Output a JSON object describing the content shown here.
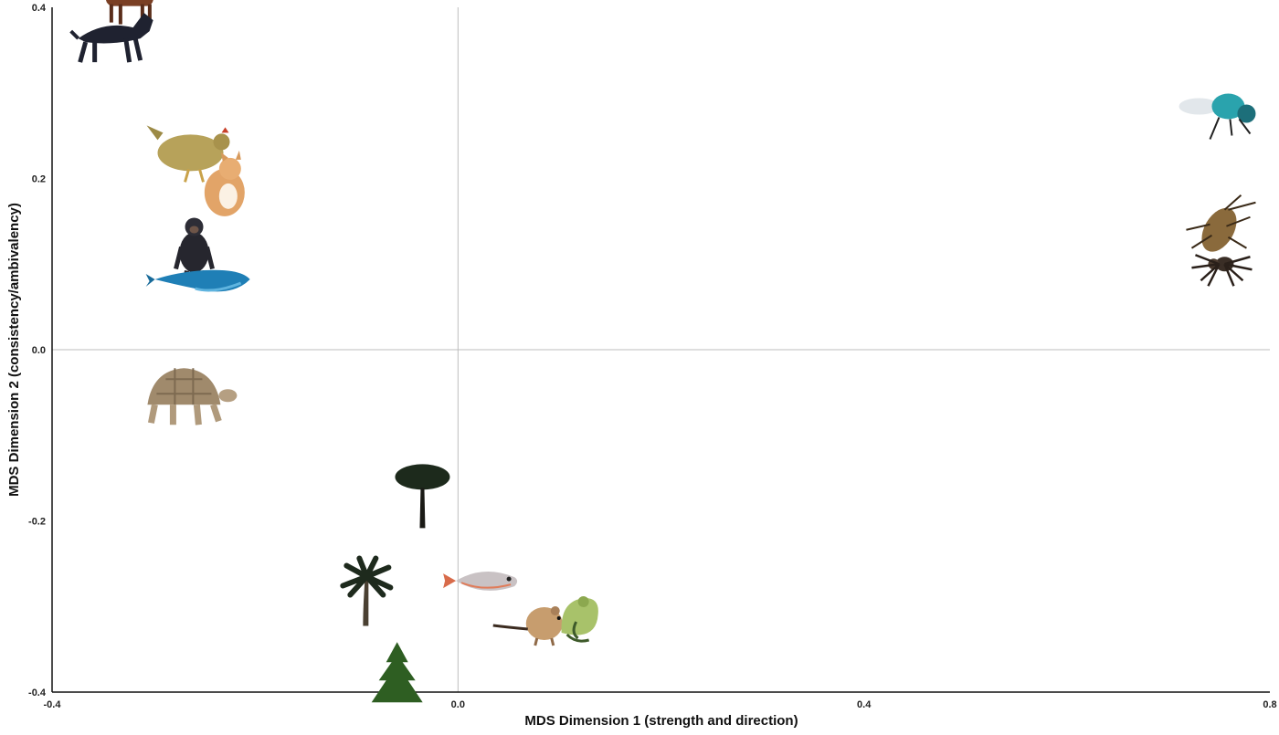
{
  "chart_data": {
    "type": "scatter",
    "title": "",
    "xlabel": "MDS Dimension 1 (strength and direction)",
    "ylabel": "MDS Dimension 2 (consistency/ambivalency)",
    "xlim": [
      -0.4,
      0.8
    ],
    "ylim": [
      -0.4,
      0.4
    ],
    "x_ticks": [
      -0.4,
      0.0,
      0.4,
      0.8
    ],
    "y_ticks": [
      0.4,
      0.2,
      0.0,
      -0.2,
      -0.4
    ],
    "x_tick_labels": [
      "-0.4",
      "0.0",
      "0.4",
      "0.8"
    ],
    "y_tick_labels": [
      "0.4",
      "0.2",
      "0.0",
      "-0.2",
      "-0.4"
    ],
    "reference_lines": {
      "x": 0.0,
      "y": 0.0
    },
    "grid": false,
    "marker": "photographs of organisms",
    "points": [
      {
        "icon": "cow",
        "x": -0.32,
        "y": 0.41
      },
      {
        "icon": "dog",
        "x": -0.34,
        "y": 0.37
      },
      {
        "icon": "chicken",
        "x": -0.26,
        "y": 0.23
      },
      {
        "icon": "cat",
        "x": -0.23,
        "y": 0.19
      },
      {
        "icon": "chimpanzee",
        "x": -0.26,
        "y": 0.12
      },
      {
        "icon": "whale",
        "x": -0.25,
        "y": 0.08
      },
      {
        "icon": "tortoise",
        "x": -0.27,
        "y": -0.06
      },
      {
        "icon": "pine-tree",
        "x": -0.035,
        "y": -0.17
      },
      {
        "icon": "fish",
        "x": 0.025,
        "y": -0.27
      },
      {
        "icon": "palm-tree",
        "x": -0.09,
        "y": -0.28
      },
      {
        "icon": "mouse",
        "x": 0.085,
        "y": -0.32
      },
      {
        "icon": "frog",
        "x": 0.12,
        "y": -0.32
      },
      {
        "icon": "conifer",
        "x": -0.06,
        "y": -0.38
      },
      {
        "icon": "fly",
        "x": 0.75,
        "y": 0.28
      },
      {
        "icon": "cockroach",
        "x": 0.75,
        "y": 0.14
      },
      {
        "icon": "spider",
        "x": 0.75,
        "y": 0.1
      }
    ]
  }
}
